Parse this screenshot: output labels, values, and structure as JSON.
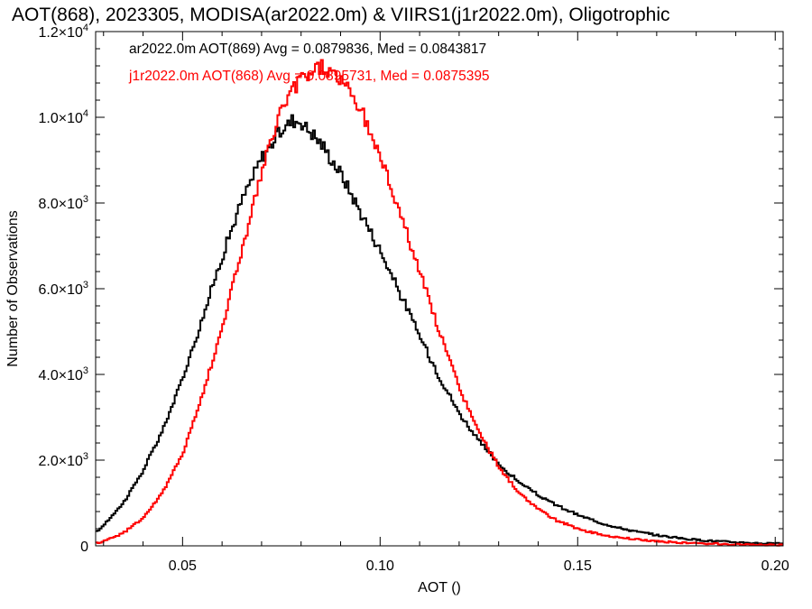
{
  "chart_data": {
    "type": "line",
    "title": "AOT(868), 2023305, MODISA(ar2022.0m) & VIIRS1(j1r2022.0m), Oligotrophic",
    "xlabel": "AOT ()",
    "ylabel": "Number of Observations",
    "xlim": [
      0.028,
      0.202
    ],
    "ylim": [
      0,
      12000
    ],
    "x_ticks": [
      {
        "value": 0.05,
        "label": "0.05"
      },
      {
        "value": 0.1,
        "label": "0.10"
      },
      {
        "value": 0.15,
        "label": "0.15"
      },
      {
        "value": 0.2,
        "label": "0.20"
      }
    ],
    "y_ticks": [
      {
        "value": 0,
        "mant": "0",
        "exp": ""
      },
      {
        "value": 2000,
        "mant": "2.0×10",
        "exp": "3"
      },
      {
        "value": 4000,
        "mant": "4.0×10",
        "exp": "3"
      },
      {
        "value": 6000,
        "mant": "6.0×10",
        "exp": "3"
      },
      {
        "value": 8000,
        "mant": "8.0×10",
        "exp": "3"
      },
      {
        "value": 10000,
        "mant": "1.0×10",
        "exp": "4"
      },
      {
        "value": 12000,
        "mant": "1.2×10",
        "exp": "4"
      }
    ],
    "grid": false,
    "series": [
      {
        "name": "ar2022.0m AOT(869)",
        "legend": "ar2022.0m AOT(869) Avg = 0.0879836, Med = 0.0843817",
        "color": "#000000",
        "points": [
          [
            0.028,
            300
          ],
          [
            0.03,
            480
          ],
          [
            0.035,
            1000
          ],
          [
            0.04,
            1750
          ],
          [
            0.045,
            2700
          ],
          [
            0.05,
            3900
          ],
          [
            0.055,
            5300
          ],
          [
            0.06,
            6750
          ],
          [
            0.065,
            8050
          ],
          [
            0.07,
            9050
          ],
          [
            0.075,
            9700
          ],
          [
            0.078,
            9950
          ],
          [
            0.08,
            9900
          ],
          [
            0.085,
            9400
          ],
          [
            0.09,
            8700
          ],
          [
            0.095,
            7800
          ],
          [
            0.1,
            6900
          ],
          [
            0.105,
            5900
          ],
          [
            0.11,
            4900
          ],
          [
            0.115,
            3950
          ],
          [
            0.12,
            3100
          ],
          [
            0.125,
            2450
          ],
          [
            0.13,
            1900
          ],
          [
            0.135,
            1500
          ],
          [
            0.14,
            1180
          ],
          [
            0.145,
            930
          ],
          [
            0.15,
            720
          ],
          [
            0.155,
            560
          ],
          [
            0.16,
            430
          ],
          [
            0.165,
            330
          ],
          [
            0.17,
            250
          ],
          [
            0.175,
            190
          ],
          [
            0.18,
            140
          ],
          [
            0.185,
            110
          ],
          [
            0.19,
            85
          ],
          [
            0.195,
            65
          ],
          [
            0.2,
            50
          ],
          [
            0.202,
            45
          ]
        ]
      },
      {
        "name": "j1r2022.0m AOT(868)",
        "legend": "j1r2022.0m AOT(868) Avg = 0.0895731, Med = 0.0875395",
        "color": "#ff0000",
        "points": [
          [
            0.028,
            60
          ],
          [
            0.03,
            110
          ],
          [
            0.035,
            300
          ],
          [
            0.04,
            650
          ],
          [
            0.045,
            1250
          ],
          [
            0.05,
            2150
          ],
          [
            0.055,
            3500
          ],
          [
            0.06,
            5100
          ],
          [
            0.065,
            6900
          ],
          [
            0.07,
            8700
          ],
          [
            0.075,
            10200
          ],
          [
            0.08,
            10900
          ],
          [
            0.085,
            11200
          ],
          [
            0.09,
            10900
          ],
          [
            0.095,
            10200
          ],
          [
            0.1,
            9100
          ],
          [
            0.105,
            7800
          ],
          [
            0.11,
            6400
          ],
          [
            0.115,
            5000
          ],
          [
            0.12,
            3700
          ],
          [
            0.125,
            2650
          ],
          [
            0.13,
            1850
          ],
          [
            0.135,
            1250
          ],
          [
            0.14,
            850
          ],
          [
            0.145,
            580
          ],
          [
            0.15,
            400
          ],
          [
            0.155,
            280
          ],
          [
            0.16,
            200
          ],
          [
            0.165,
            150
          ],
          [
            0.17,
            110
          ],
          [
            0.175,
            80
          ],
          [
            0.18,
            60
          ],
          [
            0.185,
            45
          ],
          [
            0.19,
            35
          ],
          [
            0.195,
            28
          ],
          [
            0.2,
            22
          ],
          [
            0.202,
            20
          ]
        ]
      }
    ]
  }
}
